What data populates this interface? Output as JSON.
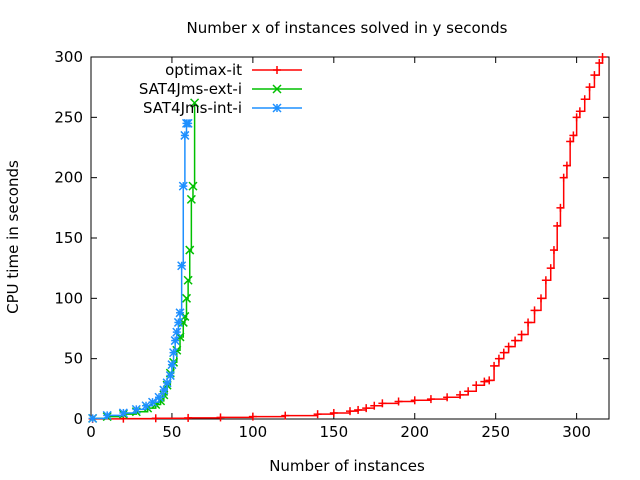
{
  "chart_data": {
    "type": "line",
    "title": "Number x of instances solved in y seconds",
    "xlabel": "Number of instances",
    "ylabel": "CPU time in seconds",
    "xlim": [
      0,
      320
    ],
    "ylim": [
      0,
      300
    ],
    "xticks": [
      "0",
      "50",
      "100",
      "150",
      "200",
      "250",
      "300"
    ],
    "yticks": [
      "0",
      "50",
      "100",
      "150",
      "200",
      "250",
      "300"
    ],
    "grid": false,
    "legend_position": "top-left",
    "series": [
      {
        "name": "optimax-it",
        "color": "#ff0000",
        "marker": "plus",
        "points": [
          [
            1,
            0.1
          ],
          [
            20,
            0.3
          ],
          [
            40,
            0.6
          ],
          [
            60,
            0.9
          ],
          [
            80,
            1.3
          ],
          [
            100,
            2
          ],
          [
            120,
            2.8
          ],
          [
            140,
            4
          ],
          [
            150,
            5
          ],
          [
            160,
            6.5
          ],
          [
            165,
            7.5
          ],
          [
            170,
            9
          ],
          [
            175,
            11
          ],
          [
            180,
            13
          ],
          [
            190,
            14.5
          ],
          [
            200,
            15.5
          ],
          [
            210,
            16.5
          ],
          [
            220,
            18
          ],
          [
            228,
            20
          ],
          [
            233,
            23
          ],
          [
            238,
            28
          ],
          [
            243,
            31
          ],
          [
            246,
            32
          ],
          [
            249,
            44
          ],
          [
            252,
            50
          ],
          [
            255,
            55
          ],
          [
            258,
            60
          ],
          [
            262,
            65
          ],
          [
            266,
            70
          ],
          [
            270,
            80
          ],
          [
            274,
            90
          ],
          [
            278,
            100
          ],
          [
            281,
            115
          ],
          [
            284,
            125
          ],
          [
            286,
            140
          ],
          [
            288,
            160
          ],
          [
            290,
            175
          ],
          [
            292,
            200
          ],
          [
            294,
            210
          ],
          [
            296,
            230
          ],
          [
            298,
            235
          ],
          [
            300,
            250
          ],
          [
            302,
            255
          ],
          [
            305,
            265
          ],
          [
            308,
            275
          ],
          [
            311,
            285
          ],
          [
            314,
            295
          ],
          [
            316,
            300
          ]
        ]
      },
      {
        "name": "SAT4Jms-ext-i",
        "color": "#00c000",
        "marker": "cross",
        "points": [
          [
            1,
            0.5
          ],
          [
            10,
            2
          ],
          [
            20,
            4
          ],
          [
            28,
            6
          ],
          [
            35,
            9
          ],
          [
            40,
            12
          ],
          [
            43,
            15
          ],
          [
            45,
            20
          ],
          [
            47,
            28
          ],
          [
            49,
            38
          ],
          [
            51,
            47
          ],
          [
            53,
            57
          ],
          [
            55,
            68
          ],
          [
            57,
            80
          ],
          [
            58,
            85
          ],
          [
            59,
            100
          ],
          [
            60,
            115
          ],
          [
            61,
            140
          ],
          [
            62,
            182
          ],
          [
            63,
            193
          ],
          [
            64,
            262
          ]
        ]
      },
      {
        "name": "SAT4Jms-int-i",
        "color": "#1e90ff",
        "marker": "star",
        "points": [
          [
            1,
            0.5
          ],
          [
            10,
            3
          ],
          [
            20,
            5
          ],
          [
            28,
            8
          ],
          [
            34,
            11
          ],
          [
            38,
            14
          ],
          [
            42,
            18
          ],
          [
            45,
            24
          ],
          [
            47,
            30
          ],
          [
            49,
            36
          ],
          [
            50,
            45
          ],
          [
            51,
            55
          ],
          [
            52,
            65
          ],
          [
            53,
            72
          ],
          [
            54,
            80
          ],
          [
            55,
            88
          ],
          [
            56,
            127
          ],
          [
            57,
            193
          ],
          [
            58,
            235
          ],
          [
            59,
            245
          ],
          [
            60,
            245
          ]
        ]
      }
    ]
  }
}
